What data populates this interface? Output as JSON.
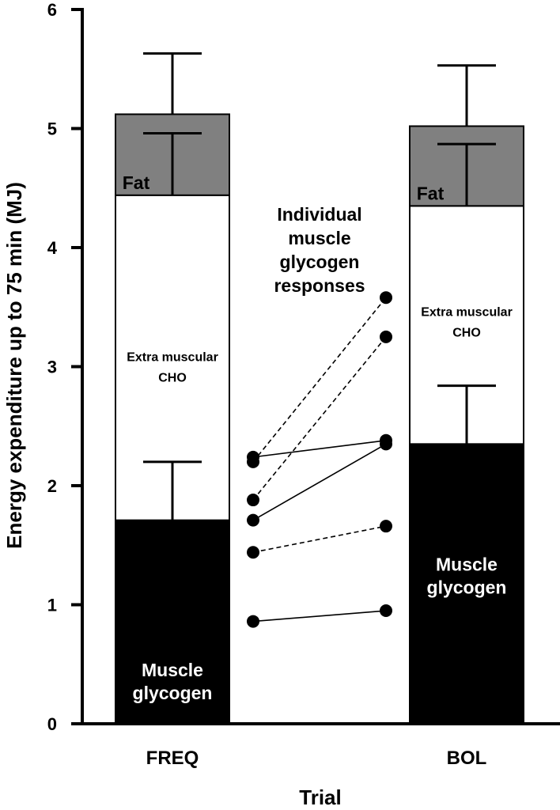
{
  "chart_data": {
    "type": "bar",
    "stacked": true,
    "xlabel": "Trial",
    "ylabel": "Energy expenditure up to 75 min (MJ)",
    "ylim": [
      0,
      6
    ],
    "yticks": [
      0,
      1,
      2,
      3,
      4,
      5,
      6
    ],
    "grid": false,
    "categories": [
      "FREQ",
      "BOL"
    ],
    "series": [
      {
        "name": "Muscle glycogen",
        "label_lines": [
          "Muscle",
          "glycogen"
        ],
        "color": "#000000",
        "label_color": "#ffffff",
        "values": [
          1.71,
          2.35
        ],
        "error_upper": [
          2.2,
          2.84
        ]
      },
      {
        "name": "Extra muscular CHO",
        "label_lines": [
          "Extra muscular",
          "CHO"
        ],
        "color": "#ffffff",
        "label_color": "#000000",
        "values": [
          2.73,
          2.0
        ],
        "error_upper": [
          null,
          null
        ]
      },
      {
        "name": "Fat",
        "label_lines": [
          "Fat"
        ],
        "color": "#808080",
        "label_color": "#000000",
        "values": [
          0.68,
          0.67
        ],
        "error_upper": [
          5.63,
          5.53
        ]
      }
    ],
    "inner_error_tops": [
      4.96,
      4.87
    ],
    "annotation_lines": [
      "Individual",
      "muscle",
      "glycogen",
      "responses"
    ],
    "individual_responses": [
      {
        "freq": 0.86,
        "bol": 0.95,
        "style": "solid"
      },
      {
        "freq": 1.44,
        "bol": 1.66,
        "style": "dashed"
      },
      {
        "freq": 1.71,
        "bol": 2.35,
        "style": "solid"
      },
      {
        "freq": 1.88,
        "bol": 3.25,
        "style": "dashed"
      },
      {
        "freq": 2.2,
        "bol": 3.58,
        "style": "dashed"
      },
      {
        "freq": 2.24,
        "bol": 2.38,
        "style": "solid"
      }
    ]
  }
}
